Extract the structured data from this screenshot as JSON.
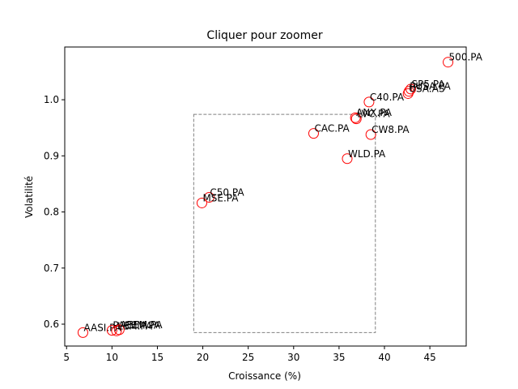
{
  "chart_data": {
    "type": "scatter",
    "title": "Cliquer pour zoomer",
    "xlabel": "Croissance (%)",
    "ylabel": "Volatilité",
    "xlim": [
      4.8,
      49.0
    ],
    "ylim": [
      0.561,
      1.094
    ],
    "xticks": [
      5,
      10,
      15,
      20,
      25,
      30,
      35,
      40,
      45
    ],
    "yticks": [
      0.6,
      0.7,
      0.8,
      0.9,
      1.0
    ],
    "grid": false,
    "marker": {
      "shape": "circle",
      "fill": "none",
      "edge_color": "#ff0000"
    },
    "selection_box": {
      "x": [
        19.0,
        39.0
      ],
      "y": [
        0.585,
        0.974
      ],
      "color": "#808080",
      "style": "dashed"
    },
    "points": [
      {
        "label": "500.PA",
        "x": 47.0,
        "y": 1.067
      },
      {
        "label": "SP5.PA",
        "x": 42.9,
        "y": 1.019
      },
      {
        "label": "PUSA.PA",
        "x": 42.7,
        "y": 1.015
      },
      {
        "label": "USA.AS",
        "x": 42.6,
        "y": 1.011
      },
      {
        "label": "C40.PA",
        "x": 38.3,
        "y": 0.996
      },
      {
        "label": "ANX.PA",
        "x": 36.8,
        "y": 0.968
      },
      {
        "label": "LVC.PA",
        "x": 36.9,
        "y": 0.966
      },
      {
        "label": "CAC.PA",
        "x": 32.2,
        "y": 0.94
      },
      {
        "label": "CW8.PA",
        "x": 38.5,
        "y": 0.938
      },
      {
        "label": "WLD.PA",
        "x": 35.9,
        "y": 0.895
      },
      {
        "label": "C50.PA",
        "x": 20.7,
        "y": 0.826
      },
      {
        "label": "MSE.PA",
        "x": 19.9,
        "y": 0.816
      },
      {
        "label": "AASI.PA",
        "x": 6.8,
        "y": 0.585
      },
      {
        "label": "PAEEM.PA",
        "x": 10.0,
        "y": 0.589
      },
      {
        "label": "LEM.PA",
        "x": 10.5,
        "y": 0.588
      },
      {
        "label": "AEEM.PA",
        "x": 10.8,
        "y": 0.59
      }
    ]
  }
}
